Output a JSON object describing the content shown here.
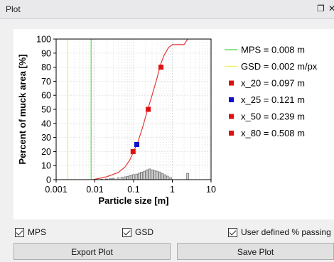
{
  "window": {
    "title": "Plot",
    "restore_icon": "restore-icon",
    "close_icon": "close-icon"
  },
  "chart_data": {
    "type": "line",
    "title": "",
    "xlabel": "Particle size [m]",
    "ylabel": "Percent of muck area [%]",
    "xscale": "log",
    "xlim": [
      0.001,
      10
    ],
    "ylim": [
      0,
      100
    ],
    "xticks": [
      "0.001",
      "0.01",
      "0.1",
      "1",
      "10"
    ],
    "yticks": [
      "0",
      "10",
      "20",
      "30",
      "40",
      "50",
      "60",
      "70",
      "80",
      "90",
      "100"
    ],
    "grid": true,
    "legend_position": "right",
    "cumulative_curve": {
      "color": "#e23a3a",
      "x": [
        0.009,
        0.02,
        0.04,
        0.06,
        0.08,
        0.1,
        0.13,
        0.17,
        0.22,
        0.3,
        0.4,
        0.5,
        0.6,
        0.8,
        1.0,
        1.5,
        2.0,
        2.5
      ],
      "y": [
        0,
        2,
        5,
        9,
        14,
        20,
        27,
        37,
        48,
        60,
        72,
        82,
        88,
        94,
        96,
        96,
        96,
        100
      ]
    },
    "histogram": {
      "color": "#d0d0d0",
      "x": [
        0.015,
        0.02,
        0.025,
        0.03,
        0.04,
        0.05,
        0.06,
        0.07,
        0.08,
        0.09,
        0.1,
        0.12,
        0.14,
        0.16,
        0.19,
        0.22,
        0.26,
        0.3,
        0.35,
        0.4,
        0.47,
        0.55,
        0.65,
        0.75,
        0.9,
        2.5
      ],
      "y": [
        0.3,
        0.5,
        0.7,
        1.0,
        1.3,
        1.6,
        2.0,
        2.3,
        2.8,
        3.2,
        3.6,
        4.0,
        4.6,
        5.4,
        6.0,
        7.0,
        7.6,
        7.0,
        6.5,
        6.0,
        5.5,
        4.5,
        3.5,
        2.5,
        1.5,
        4.5
      ]
    },
    "vlines": [
      {
        "name": "MPS = 0.008 m",
        "x": 0.008,
        "color": "#66dd66"
      },
      {
        "name": "GSD = 0.002 m/px",
        "x": 0.002,
        "color": "#f0ef66"
      }
    ],
    "markers": [
      {
        "name": "x_20 = 0.097 m",
        "x": 0.097,
        "y": 20,
        "color": "#dd1111"
      },
      {
        "name": "x_25 = 0.121 m",
        "x": 0.121,
        "y": 25,
        "color": "#1111cc"
      },
      {
        "name": "x_50 = 0.239 m",
        "x": 0.239,
        "y": 50,
        "color": "#dd1111"
      },
      {
        "name": "x_80 = 0.508 m",
        "x": 0.508,
        "y": 80,
        "color": "#dd1111"
      }
    ]
  },
  "options": {
    "mps": {
      "label": "MPS",
      "checked": true
    },
    "gsd": {
      "label": "GSD",
      "checked": true
    },
    "user_defined": {
      "label": "User defined % passing",
      "checked": true
    }
  },
  "buttons": {
    "export": "Export Plot",
    "save": "Save Plot"
  }
}
